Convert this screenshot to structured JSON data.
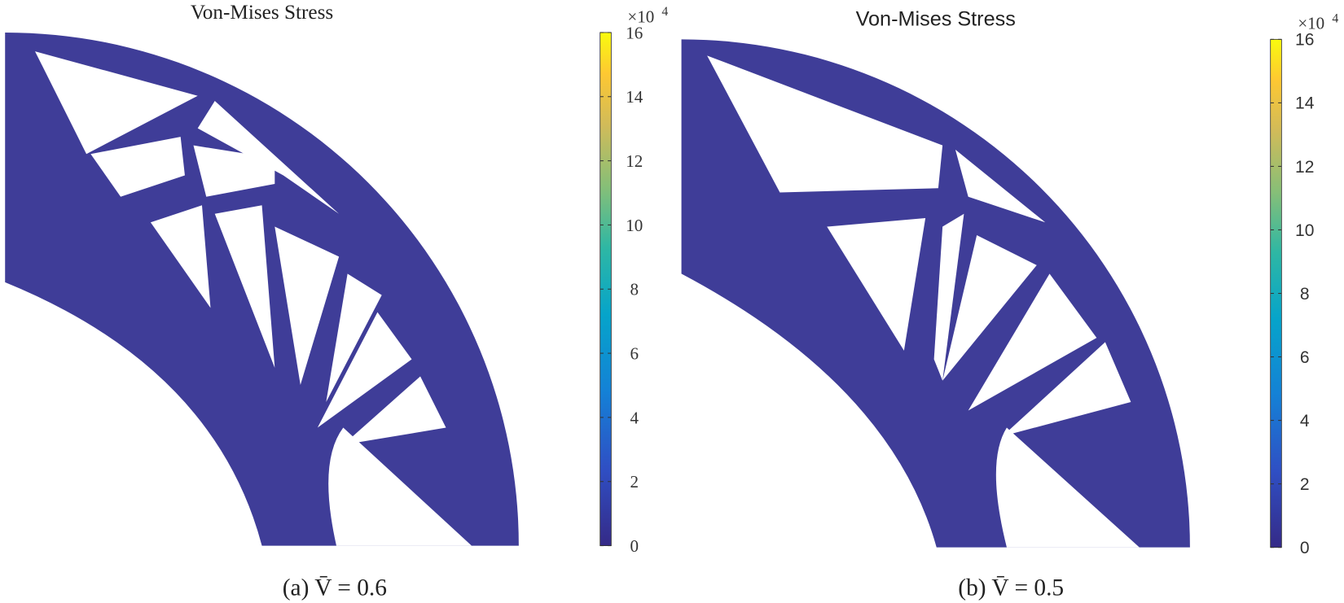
{
  "panels": [
    {
      "title": "Von-Mises Stress",
      "caption": "(a) V̄ = 0.6",
      "colorbar": {
        "multiplier": "×10",
        "exponent": "4",
        "lim": [
          0,
          16
        ],
        "ticks": [
          0,
          2,
          4,
          6,
          8,
          10,
          12,
          14,
          16
        ]
      }
    },
    {
      "title": "Von-Mises Stress",
      "caption": "(b) V̄ = 0.5",
      "colorbar": {
        "multiplier": "×10",
        "exponent": "4",
        "lim": [
          0,
          16
        ],
        "ticks": [
          0,
          2,
          4,
          6,
          8,
          10,
          12,
          14,
          16
        ]
      }
    }
  ]
}
